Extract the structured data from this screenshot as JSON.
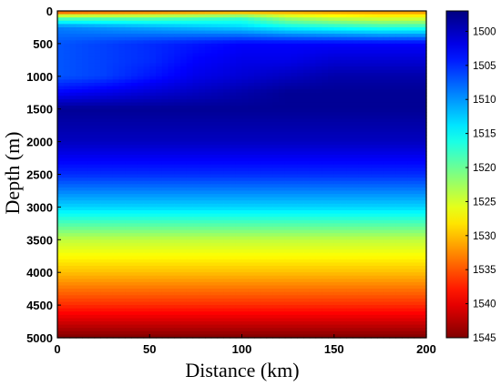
{
  "chart_data": {
    "type": "heatmap",
    "title": "",
    "xlabel": "Distance (km)",
    "ylabel": "Depth (m)",
    "xlim": [
      0,
      200
    ],
    "ylim": [
      0,
      5000
    ],
    "y_inverted": true,
    "x_ticks": [
      0,
      50,
      100,
      150,
      200
    ],
    "y_ticks": [
      0,
      500,
      1000,
      1500,
      2000,
      2500,
      3000,
      3500,
      4000,
      4500,
      5000
    ],
    "grid": false,
    "colormap": "jet",
    "colorbar": {
      "placement": "right",
      "range": [
        1497,
        1545
      ],
      "ticks": [
        1500,
        1505,
        1510,
        1515,
        1520,
        1525,
        1530,
        1535,
        1540,
        1545
      ],
      "reversed": true
    },
    "x": [
      0,
      25,
      50,
      75,
      100,
      125,
      150,
      175,
      200
    ],
    "depth": [
      0,
      100,
      250,
      500,
      750,
      1000,
      1250,
      1500,
      2000,
      2500,
      3000,
      3500,
      4000,
      4500,
      5000
    ],
    "sound_speed": [
      [
        1538,
        1537,
        1536,
        1535,
        1534,
        1533,
        1533,
        1533,
        1533
      ],
      [
        1520,
        1520,
        1520,
        1519,
        1518,
        1523,
        1525,
        1526,
        1526
      ],
      [
        1509,
        1510,
        1511,
        1512,
        1513,
        1515,
        1516,
        1517,
        1517
      ],
      [
        1507,
        1506,
        1505,
        1504,
        1503,
        1503,
        1503,
        1503,
        1503
      ],
      [
        1507,
        1506,
        1505,
        1503,
        1502,
        1502,
        1501,
        1501,
        1501
      ],
      [
        1507,
        1506,
        1504,
        1502,
        1501,
        1500,
        1499,
        1499,
        1499
      ],
      [
        1503,
        1502,
        1501,
        1500,
        1499,
        1498,
        1498,
        1498,
        1498
      ],
      [
        1498,
        1498,
        1498,
        1498,
        1498,
        1498,
        1498,
        1498,
        1498
      ],
      [
        1500,
        1500,
        1500,
        1500,
        1500,
        1500,
        1500,
        1500,
        1500
      ],
      [
        1505,
        1505,
        1505,
        1505,
        1505,
        1505,
        1505,
        1505,
        1505
      ],
      [
        1513,
        1513,
        1513,
        1513,
        1513,
        1513,
        1513,
        1513,
        1513
      ],
      [
        1524,
        1524,
        1524,
        1524,
        1524,
        1524,
        1524,
        1524,
        1524
      ],
      [
        1530,
        1530,
        1530,
        1530,
        1530,
        1530,
        1530,
        1530,
        1530
      ],
      [
        1537,
        1537,
        1537,
        1537,
        1537,
        1537,
        1537,
        1537,
        1537
      ],
      [
        1545,
        1545,
        1545,
        1545,
        1545,
        1545,
        1545,
        1545,
        1545
      ]
    ]
  }
}
